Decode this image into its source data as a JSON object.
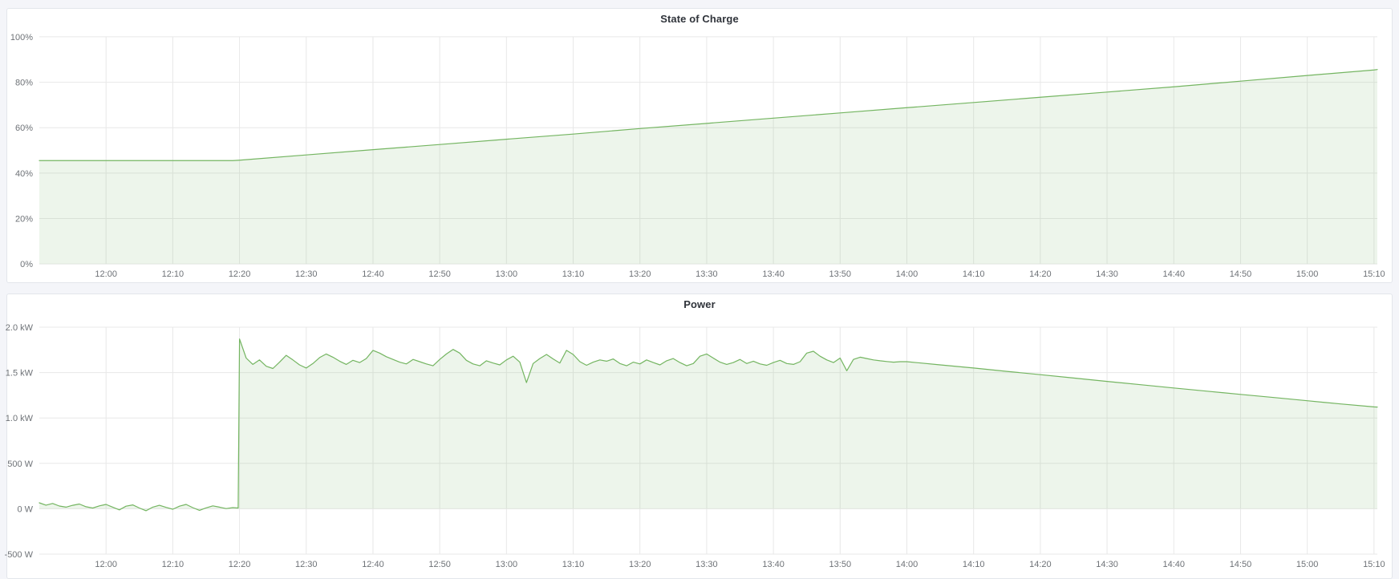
{
  "colors": {
    "page_background": "#f4f5f9",
    "panel_background": "#ffffff",
    "panel_border": "#e3e6eb",
    "grid": "#e8e8e8",
    "tick_text": "#6e7277",
    "title_text": "#30343b",
    "series_line": "#74b561",
    "series_fill": "rgba(116,181,101,0.13)"
  },
  "chart_data": [
    {
      "id": "state-of-charge",
      "type": "area",
      "title": "State of Charge",
      "xlabel": "",
      "ylabel": "",
      "x_unit": "minutes after 11:50",
      "xlim": [
        0,
        200.5
      ],
      "ylim": [
        0,
        100
      ],
      "x_ticks": [
        {
          "t": 10,
          "label": "12:00"
        },
        {
          "t": 20,
          "label": "12:10"
        },
        {
          "t": 30,
          "label": "12:20"
        },
        {
          "t": 40,
          "label": "12:30"
        },
        {
          "t": 50,
          "label": "12:40"
        },
        {
          "t": 60,
          "label": "12:50"
        },
        {
          "t": 70,
          "label": "13:00"
        },
        {
          "t": 80,
          "label": "13:10"
        },
        {
          "t": 90,
          "label": "13:20"
        },
        {
          "t": 100,
          "label": "13:30"
        },
        {
          "t": 110,
          "label": "13:40"
        },
        {
          "t": 120,
          "label": "13:50"
        },
        {
          "t": 130,
          "label": "14:00"
        },
        {
          "t": 140,
          "label": "14:10"
        },
        {
          "t": 150,
          "label": "14:20"
        },
        {
          "t": 160,
          "label": "14:30"
        },
        {
          "t": 170,
          "label": "14:40"
        },
        {
          "t": 180,
          "label": "14:50"
        },
        {
          "t": 190,
          "label": "15:00"
        },
        {
          "t": 200,
          "label": "15:10"
        }
      ],
      "y_ticks": [
        {
          "v": 0,
          "label": "0%"
        },
        {
          "v": 20,
          "label": "20%"
        },
        {
          "v": 40,
          "label": "40%"
        },
        {
          "v": 60,
          "label": "60%"
        },
        {
          "v": 80,
          "label": "80%"
        },
        {
          "v": 100,
          "label": "100%"
        }
      ],
      "points": [
        [
          0,
          45.5
        ],
        [
          10,
          45.5
        ],
        [
          20,
          45.5
        ],
        [
          29,
          45.5
        ],
        [
          30,
          45.7
        ],
        [
          40,
          48.0
        ],
        [
          50,
          50.3
        ],
        [
          60,
          52.6
        ],
        [
          70,
          54.9
        ],
        [
          80,
          57.2
        ],
        [
          90,
          59.6
        ],
        [
          100,
          61.9
        ],
        [
          110,
          64.2
        ],
        [
          120,
          66.5
        ],
        [
          130,
          68.8
        ],
        [
          140,
          71.1
        ],
        [
          150,
          73.4
        ],
        [
          160,
          75.7
        ],
        [
          170,
          78.0
        ],
        [
          180,
          80.5
        ],
        [
          190,
          83.0
        ],
        [
          200,
          85.4
        ],
        [
          200.5,
          85.6
        ]
      ]
    },
    {
      "id": "power",
      "type": "area",
      "title": "Power",
      "xlabel": "",
      "ylabel": "",
      "x_unit": "minutes after 11:50",
      "xlim": [
        0,
        200.5
      ],
      "ylim": [
        -500,
        2000
      ],
      "x_ticks": [
        {
          "t": 10,
          "label": "12:00"
        },
        {
          "t": 20,
          "label": "12:10"
        },
        {
          "t": 30,
          "label": "12:20"
        },
        {
          "t": 40,
          "label": "12:30"
        },
        {
          "t": 50,
          "label": "12:40"
        },
        {
          "t": 60,
          "label": "12:50"
        },
        {
          "t": 70,
          "label": "13:00"
        },
        {
          "t": 80,
          "label": "13:10"
        },
        {
          "t": 90,
          "label": "13:20"
        },
        {
          "t": 100,
          "label": "13:30"
        },
        {
          "t": 110,
          "label": "13:40"
        },
        {
          "t": 120,
          "label": "13:50"
        },
        {
          "t": 130,
          "label": "14:00"
        },
        {
          "t": 140,
          "label": "14:10"
        },
        {
          "t": 150,
          "label": "14:20"
        },
        {
          "t": 160,
          "label": "14:30"
        },
        {
          "t": 170,
          "label": "14:40"
        },
        {
          "t": 180,
          "label": "14:50"
        },
        {
          "t": 190,
          "label": "15:00"
        },
        {
          "t": 200,
          "label": "15:10"
        }
      ],
      "y_ticks": [
        {
          "v": -500,
          "label": "-500 W"
        },
        {
          "v": 0,
          "label": "0 W"
        },
        {
          "v": 500,
          "label": "500 W"
        },
        {
          "v": 1000,
          "label": "1.0 kW"
        },
        {
          "v": 1500,
          "label": "1.5 kW"
        },
        {
          "v": 2000,
          "label": "2.0 kW"
        }
      ],
      "baseline": 0,
      "points": [
        [
          0,
          65
        ],
        [
          1,
          40
        ],
        [
          2,
          58
        ],
        [
          3,
          30
        ],
        [
          4,
          18
        ],
        [
          5,
          38
        ],
        [
          6,
          52
        ],
        [
          7,
          22
        ],
        [
          8,
          8
        ],
        [
          9,
          32
        ],
        [
          10,
          48
        ],
        [
          11,
          18
        ],
        [
          12,
          -12
        ],
        [
          13,
          28
        ],
        [
          14,
          42
        ],
        [
          15,
          8
        ],
        [
          16,
          -22
        ],
        [
          17,
          18
        ],
        [
          18,
          38
        ],
        [
          19,
          15
        ],
        [
          20,
          -5
        ],
        [
          21,
          28
        ],
        [
          22,
          48
        ],
        [
          23,
          12
        ],
        [
          24,
          -18
        ],
        [
          25,
          10
        ],
        [
          26,
          32
        ],
        [
          27,
          18
        ],
        [
          28,
          2
        ],
        [
          29,
          12
        ],
        [
          29.8,
          8
        ],
        [
          30,
          1870
        ],
        [
          31,
          1660
        ],
        [
          32,
          1590
        ],
        [
          33,
          1640
        ],
        [
          34,
          1570
        ],
        [
          35,
          1545
        ],
        [
          36,
          1615
        ],
        [
          37,
          1690
        ],
        [
          38,
          1640
        ],
        [
          39,
          1585
        ],
        [
          40,
          1550
        ],
        [
          41,
          1600
        ],
        [
          42,
          1665
        ],
        [
          43,
          1705
        ],
        [
          44,
          1670
        ],
        [
          45,
          1625
        ],
        [
          46,
          1590
        ],
        [
          47,
          1635
        ],
        [
          48,
          1610
        ],
        [
          49,
          1655
        ],
        [
          50,
          1745
        ],
        [
          51,
          1715
        ],
        [
          52,
          1675
        ],
        [
          53,
          1645
        ],
        [
          54,
          1615
        ],
        [
          55,
          1595
        ],
        [
          56,
          1645
        ],
        [
          57,
          1620
        ],
        [
          58,
          1595
        ],
        [
          59,
          1575
        ],
        [
          60,
          1645
        ],
        [
          61,
          1705
        ],
        [
          62,
          1755
        ],
        [
          63,
          1715
        ],
        [
          64,
          1635
        ],
        [
          65,
          1595
        ],
        [
          66,
          1575
        ],
        [
          67,
          1630
        ],
        [
          68,
          1605
        ],
        [
          69,
          1585
        ],
        [
          70,
          1640
        ],
        [
          71,
          1680
        ],
        [
          72,
          1615
        ],
        [
          73,
          1390
        ],
        [
          74,
          1600
        ],
        [
          75,
          1655
        ],
        [
          76,
          1700
        ],
        [
          77,
          1650
        ],
        [
          78,
          1605
        ],
        [
          79,
          1745
        ],
        [
          80,
          1700
        ],
        [
          81,
          1620
        ],
        [
          82,
          1580
        ],
        [
          83,
          1615
        ],
        [
          84,
          1640
        ],
        [
          85,
          1625
        ],
        [
          86,
          1650
        ],
        [
          87,
          1600
        ],
        [
          88,
          1575
        ],
        [
          89,
          1615
        ],
        [
          90,
          1595
        ],
        [
          91,
          1640
        ],
        [
          92,
          1610
        ],
        [
          93,
          1585
        ],
        [
          94,
          1630
        ],
        [
          95,
          1655
        ],
        [
          96,
          1610
        ],
        [
          97,
          1575
        ],
        [
          98,
          1600
        ],
        [
          99,
          1680
        ],
        [
          100,
          1705
        ],
        [
          101,
          1660
        ],
        [
          102,
          1615
        ],
        [
          103,
          1590
        ],
        [
          104,
          1610
        ],
        [
          105,
          1645
        ],
        [
          106,
          1600
        ],
        [
          107,
          1625
        ],
        [
          108,
          1595
        ],
        [
          109,
          1580
        ],
        [
          110,
          1610
        ],
        [
          111,
          1635
        ],
        [
          112,
          1600
        ],
        [
          113,
          1590
        ],
        [
          114,
          1620
        ],
        [
          115,
          1715
        ],
        [
          116,
          1735
        ],
        [
          117,
          1680
        ],
        [
          118,
          1640
        ],
        [
          119,
          1610
        ],
        [
          120,
          1660
        ],
        [
          121,
          1520
        ],
        [
          122,
          1645
        ],
        [
          123,
          1670
        ],
        [
          124,
          1655
        ],
        [
          125,
          1640
        ],
        [
          126,
          1630
        ],
        [
          127,
          1622
        ],
        [
          128,
          1615
        ],
        [
          129,
          1620
        ],
        [
          130,
          1620
        ],
        [
          135,
          1585
        ],
        [
          140,
          1550
        ],
        [
          145,
          1513
        ],
        [
          150,
          1477
        ],
        [
          155,
          1440
        ],
        [
          160,
          1403
        ],
        [
          165,
          1367
        ],
        [
          170,
          1330
        ],
        [
          175,
          1295
        ],
        [
          180,
          1260
        ],
        [
          185,
          1225
        ],
        [
          190,
          1190
        ],
        [
          195,
          1155
        ],
        [
          200,
          1122
        ],
        [
          200.5,
          1120
        ]
      ]
    }
  ]
}
